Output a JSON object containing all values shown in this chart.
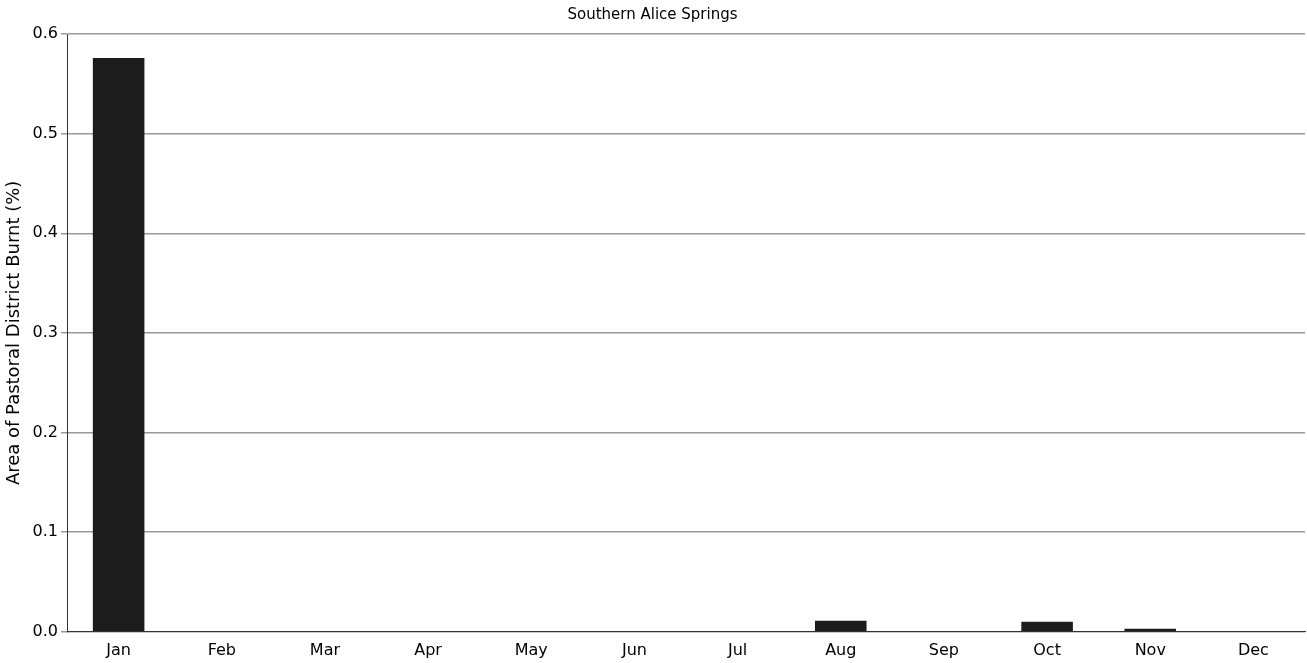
{
  "chart_data": {
    "type": "bar",
    "title": "Southern Alice Springs",
    "ylabel": "Area of Pastoral District Burnt (%)",
    "categories": [
      "Jan",
      "Feb",
      "Mar",
      "Apr",
      "May",
      "Jun",
      "Jul",
      "Aug",
      "Sep",
      "Oct",
      "Nov",
      "Dec"
    ],
    "values": [
      0.576,
      0,
      0,
      0,
      0,
      0,
      0,
      0.011,
      0,
      0.01,
      0.003,
      0
    ],
    "color": "#1c1c1c",
    "ylim": [
      0,
      0.6
    ],
    "yticks": [
      {
        "value": 0,
        "label": "0.0"
      },
      0.1,
      0.2,
      0.3,
      0.4,
      0.5,
      0.6
    ],
    "grid": "y"
  }
}
